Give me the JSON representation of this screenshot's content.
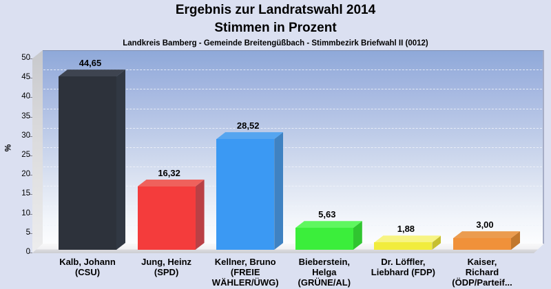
{
  "header": {
    "title_line1": "Ergebnis zur Landratswahl 2014",
    "title_line2": "Stimmen in Prozent",
    "subtitle": "Landkreis Bamberg - Gemeinde Breitengüßbach - Stimmbezirk Briefwahl II (0012)"
  },
  "axis": {
    "y_label": "%",
    "tick_labels": [
      "0",
      "5",
      "10",
      "15",
      "20",
      "25",
      "30",
      "35",
      "40",
      "45",
      "50"
    ]
  },
  "chart_data": {
    "type": "bar",
    "style": "3d-vertical-bars",
    "title": "Ergebnis zur Landratswahl 2014",
    "subtitle": "Stimmen in Prozent",
    "subtitle2": "Landkreis Bamberg - Gemeinde Breitengüßbach - Stimmbezirk Briefwahl II (0012)",
    "xlabel": "",
    "ylabel": "%",
    "ylim": [
      0,
      50
    ],
    "ytick_step": 5,
    "grid": "horizontal-dashed",
    "legend": "none",
    "categories": [
      "Kalb, Johann (CSU)",
      "Jung, Heinz (SPD)",
      "Kellner, Bruno (FREIE WÄHLER/ÜWG)",
      "Bieberstein, Helga (GRÜNE/AL)",
      "Dr. Löffler, Liebhard (FDP)",
      "Kaiser, Richard (ÖDP/Parteif..."
    ],
    "category_lines": [
      [
        "Kalb, Johann",
        "(CSU)"
      ],
      [
        "Jung, Heinz",
        "(SPD)"
      ],
      [
        "Kellner, Bruno",
        "(FREIE",
        "WÄHLER/ÜWG)"
      ],
      [
        "Bieberstein,",
        "Helga",
        "(GRÜNE/AL)"
      ],
      [
        "Dr. Löffler,",
        "Liebhard (FDP)"
      ],
      [
        "Kaiser,",
        "Richard",
        "(ÖDP/Parteif..."
      ]
    ],
    "values": [
      44.65,
      16.32,
      28.52,
      5.63,
      1.88,
      3.0
    ],
    "value_labels": [
      "44,65",
      "16,32",
      "28,52",
      "5,63",
      "1,88",
      "3,00"
    ],
    "bar_colors": [
      {
        "front": "#2d323b",
        "top": "#3e4450",
        "side": "#313843"
      },
      {
        "front": "#f43c3c",
        "top": "#ef615c",
        "side": "#ba4045"
      },
      {
        "front": "#3b99f3",
        "top": "#55a5f0",
        "side": "#3f82c2"
      },
      {
        "front": "#3bee3b",
        "top": "#5ff75f",
        "side": "#30c530"
      },
      {
        "front": "#f1ec3d",
        "top": "#f7f483",
        "side": "#c6bf31"
      },
      {
        "front": "#f0913a",
        "top": "#eb9c4f",
        "side": "#c2782d"
      }
    ],
    "background_color": "#dbe0f1",
    "wall_gradient_top": "#8fa9d9",
    "wall_gradient_bottom": "#fcfdfe"
  }
}
